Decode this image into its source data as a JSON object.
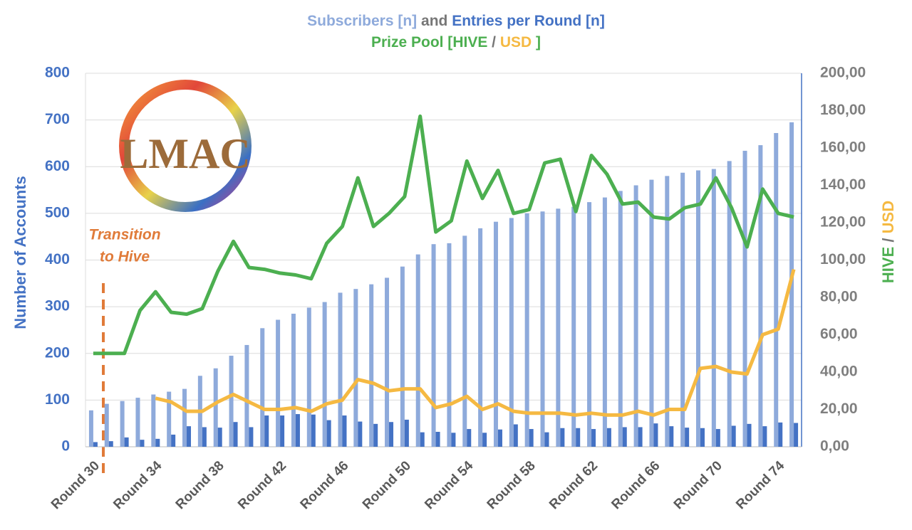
{
  "chart_data": {
    "type": "bar_line",
    "title_and": "and",
    "title_prize": "Prize Pool [",
    "title_sep": "/",
    "title_close": "]",
    "y_label": "Number of Accounts",
    "y2_sep": "/",
    "annotation": [
      "Transition",
      "to Hive"
    ],
    "logo_text": "LMAC",
    "categories": [
      "Round 30",
      null,
      null,
      null,
      "Round 34",
      null,
      null,
      null,
      "Round 38",
      null,
      null,
      null,
      "Round 42",
      null,
      null,
      null,
      "Round 46",
      null,
      null,
      null,
      "Round 50",
      null,
      null,
      null,
      "Round 54",
      null,
      null,
      null,
      "Round 58",
      null,
      null,
      null,
      "Round 62",
      null,
      null,
      null,
      "Round 66",
      null,
      null,
      null,
      "Round 70",
      null,
      null,
      null,
      "Round 74",
      null
    ],
    "series": [
      {
        "name": "Subscribers [n]",
        "kind": "bar",
        "color": "#8eaadb",
        "values": [
          78,
          92,
          98,
          105,
          112,
          118,
          124,
          152,
          168,
          195,
          218,
          254,
          272,
          285,
          298,
          310,
          330,
          338,
          348,
          362,
          386,
          412,
          434,
          436,
          452,
          468,
          482,
          490,
          500,
          504,
          510,
          514,
          524,
          534,
          548,
          560,
          572,
          580,
          587,
          592,
          595,
          612,
          634,
          646,
          672,
          695
        ]
      },
      {
        "name": "Entries per Round [n]",
        "kind": "bar",
        "color": "#4472c4",
        "values": [
          10,
          12,
          20,
          15,
          17,
          26,
          44,
          42,
          41,
          53,
          42,
          67,
          67,
          70,
          69,
          57,
          67,
          54,
          49,
          53,
          58,
          31,
          32,
          30,
          38,
          30,
          37,
          48,
          38,
          31,
          40,
          40,
          38,
          40,
          42,
          42,
          50,
          44,
          41,
          40,
          38,
          45,
          49,
          44,
          52,
          51
        ]
      },
      {
        "name": "HIVE",
        "kind": "line",
        "axis": "y2",
        "color": "#4caf50",
        "values": [
          50,
          50,
          50,
          73,
          83,
          72,
          71,
          74,
          94,
          110,
          96,
          95,
          93,
          92,
          90,
          109,
          118,
          144,
          118,
          125,
          134,
          177,
          115,
          121,
          153,
          133,
          148,
          125,
          127,
          152,
          154,
          126,
          156,
          146,
          130,
          131,
          123,
          122,
          128,
          130,
          144,
          128,
          107,
          138,
          125,
          123
        ]
      },
      {
        "name": "USD",
        "kind": "line",
        "axis": "y2",
        "color": "#f5b942",
        "values": [
          null,
          null,
          null,
          null,
          26,
          24,
          19,
          19,
          24,
          28,
          24,
          20,
          20,
          21,
          19,
          23,
          25,
          36,
          34,
          30,
          31,
          31,
          21,
          23,
          27,
          20,
          23,
          19,
          18,
          18,
          18,
          17,
          18,
          17,
          17,
          19,
          17,
          20,
          20,
          42,
          43,
          40,
          39,
          60,
          63,
          95
        ]
      }
    ],
    "ylim": [
      0,
      800
    ],
    "yticks": [
      0,
      100,
      200,
      300,
      400,
      500,
      600,
      700,
      800
    ],
    "y2lim": [
      0,
      200
    ],
    "y2ticks": [
      {
        "value": 0,
        "label": "0,00"
      },
      {
        "value": 20,
        "label": "20,00"
      },
      {
        "value": 40,
        "label": "40,00"
      },
      {
        "value": 60,
        "label": "60,00"
      },
      {
        "value": 80,
        "label": "80,00"
      },
      {
        "value": 100,
        "label": "100,00"
      },
      {
        "value": 120,
        "label": "120,00"
      },
      {
        "value": 140,
        "label": "140,00"
      },
      {
        "value": 160,
        "label": "160,00"
      },
      {
        "value": 180,
        "label": "180,00"
      },
      {
        "value": 200,
        "label": "200,00"
      }
    ],
    "grid": true
  }
}
